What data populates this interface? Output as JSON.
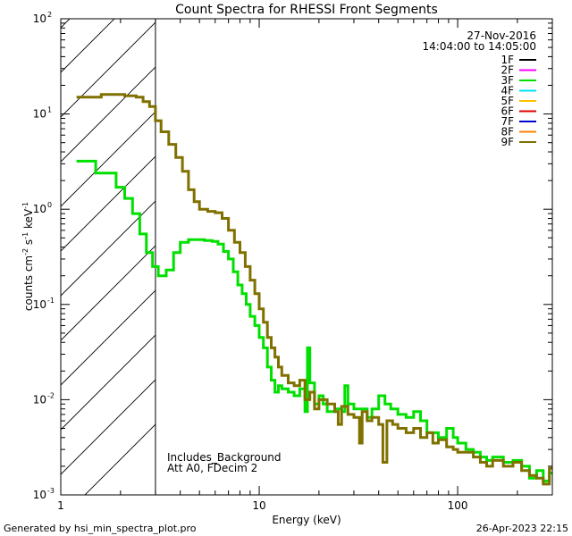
{
  "chart_data": {
    "type": "line",
    "title": "Count Spectra for RHESSI Front Segments",
    "xlabel": "Energy (keV)",
    "ylabel_parts": {
      "base": "counts cm",
      "exp1": "-2",
      "mid": " s",
      "exp2": "-1",
      "end": " keV",
      "exp3": "-1"
    },
    "xscale": "log",
    "yscale": "log",
    "xlim": [
      1,
      300
    ],
    "ylim": [
      0.001,
      100
    ],
    "x_ticks": [
      {
        "value": 1,
        "label": "1"
      },
      {
        "value": 10,
        "label": "10"
      },
      {
        "value": 100,
        "label": "100"
      }
    ],
    "y_ticks": [
      {
        "value": 0.001,
        "base": "10",
        "exp": "-3"
      },
      {
        "value": 0.01,
        "base": "10",
        "exp": "-2"
      },
      {
        "value": 0.1,
        "base": "10",
        "exp": "-1"
      },
      {
        "value": 1,
        "base": "10",
        "exp": "0"
      },
      {
        "value": 10,
        "base": "10",
        "exp": "1"
      },
      {
        "value": 100,
        "base": "10",
        "exp": "2"
      }
    ],
    "hatched_region_keV": [
      1,
      3
    ],
    "date": "27-Nov-2016",
    "time_range": "14:04:00 to 14:05:00",
    "annotations": [
      "Includes_Background",
      "Att A0, FDecim 2"
    ],
    "legend_position": "top-right",
    "legend": [
      {
        "label": "1F",
        "color": "#000000"
      },
      {
        "label": "2F",
        "color": "#ff00ff"
      },
      {
        "label": "3F",
        "color": "#00e000"
      },
      {
        "label": "4F",
        "color": "#00e0ff"
      },
      {
        "label": "5F",
        "color": "#ffc000"
      },
      {
        "label": "6F",
        "color": "#e00000"
      },
      {
        "label": "7F",
        "color": "#0000d0"
      },
      {
        "label": "8F",
        "color": "#ff8000"
      },
      {
        "label": "9F",
        "color": "#807000"
      }
    ],
    "series": [
      {
        "name": "3F",
        "color": "#00e000",
        "points": [
          [
            1.2,
            3.2
          ],
          [
            1.35,
            3.2
          ],
          [
            1.5,
            2.4
          ],
          [
            1.7,
            2.4
          ],
          [
            1.9,
            1.7
          ],
          [
            2.1,
            1.3
          ],
          [
            2.3,
            0.9
          ],
          [
            2.5,
            0.55
          ],
          [
            2.7,
            0.35
          ],
          [
            2.9,
            0.25
          ],
          [
            3.1,
            0.2
          ],
          [
            3.4,
            0.23
          ],
          [
            3.7,
            0.35
          ],
          [
            4.0,
            0.45
          ],
          [
            4.4,
            0.48
          ],
          [
            4.8,
            0.48
          ],
          [
            5.3,
            0.47
          ],
          [
            5.8,
            0.46
          ],
          [
            6.2,
            0.43
          ],
          [
            6.6,
            0.36
          ],
          [
            7.0,
            0.3
          ],
          [
            7.4,
            0.22
          ],
          [
            7.8,
            0.16
          ],
          [
            8.2,
            0.13
          ],
          [
            8.6,
            0.1
          ],
          [
            9.0,
            0.075
          ],
          [
            9.5,
            0.06
          ],
          [
            10.0,
            0.045
          ],
          [
            10.5,
            0.035
          ],
          [
            11.0,
            0.022
          ],
          [
            11.5,
            0.016
          ],
          [
            12.0,
            0.012
          ],
          [
            12.5,
            0.014
          ],
          [
            13.0,
            0.013
          ],
          [
            14.0,
            0.012
          ],
          [
            15.0,
            0.011
          ],
          [
            16.0,
            0.013
          ],
          [
            17.0,
            0.0075
          ],
          [
            17.5,
            0.035
          ],
          [
            18.0,
            0.015
          ],
          [
            19.0,
            0.009
          ],
          [
            20.0,
            0.011
          ],
          [
            21.0,
            0.009
          ],
          [
            22.0,
            0.0075
          ],
          [
            24.0,
            0.008
          ],
          [
            26.0,
            0.0075
          ],
          [
            27.0,
            0.014
          ],
          [
            28.0,
            0.009
          ],
          [
            30.0,
            0.008
          ],
          [
            33.0,
            0.008
          ],
          [
            35.0,
            0.0065
          ],
          [
            37.0,
            0.008
          ],
          [
            40.0,
            0.011
          ],
          [
            43.0,
            0.009
          ],
          [
            46.0,
            0.008
          ],
          [
            50.0,
            0.007
          ],
          [
            55.0,
            0.0065
          ],
          [
            60.0,
            0.0075
          ],
          [
            65.0,
            0.006
          ],
          [
            70.0,
            0.0045
          ],
          [
            75.0,
            0.0045
          ],
          [
            80.0,
            0.004
          ],
          [
            88.0,
            0.005
          ],
          [
            95.0,
            0.004
          ],
          [
            100.0,
            0.0035
          ],
          [
            110.0,
            0.003
          ],
          [
            120.0,
            0.0028
          ],
          [
            130.0,
            0.0025
          ],
          [
            140.0,
            0.0023
          ],
          [
            150.0,
            0.0025
          ],
          [
            170.0,
            0.0022
          ],
          [
            190.0,
            0.0023
          ],
          [
            210.0,
            0.002
          ],
          [
            230.0,
            0.0015
          ],
          [
            250.0,
            0.0018
          ],
          [
            270.0,
            0.0014
          ],
          [
            290.0,
            0.0017
          ]
        ]
      },
      {
        "name": "9F",
        "color": "#807000",
        "points": [
          [
            1.2,
            15
          ],
          [
            1.4,
            15
          ],
          [
            1.6,
            16
          ],
          [
            1.9,
            16
          ],
          [
            2.1,
            15.5
          ],
          [
            2.4,
            15
          ],
          [
            2.6,
            13.5
          ],
          [
            2.8,
            12
          ],
          [
            3.0,
            8.5
          ],
          [
            3.2,
            6.5
          ],
          [
            3.5,
            4.8
          ],
          [
            3.8,
            3.5
          ],
          [
            4.1,
            2.5
          ],
          [
            4.4,
            1.6
          ],
          [
            4.7,
            1.2
          ],
          [
            5.0,
            1.0
          ],
          [
            5.5,
            0.95
          ],
          [
            6.0,
            0.92
          ],
          [
            6.5,
            0.8
          ],
          [
            7.0,
            0.6
          ],
          [
            7.5,
            0.45
          ],
          [
            8.0,
            0.35
          ],
          [
            8.5,
            0.25
          ],
          [
            9.0,
            0.18
          ],
          [
            9.5,
            0.13
          ],
          [
            10.0,
            0.09
          ],
          [
            10.5,
            0.065
          ],
          [
            11.0,
            0.045
          ],
          [
            11.5,
            0.035
          ],
          [
            12.0,
            0.028
          ],
          [
            12.5,
            0.022
          ],
          [
            13.0,
            0.018
          ],
          [
            14.0,
            0.015
          ],
          [
            15.0,
            0.014
          ],
          [
            16.0,
            0.016
          ],
          [
            17.0,
            0.01
          ],
          [
            18.0,
            0.012
          ],
          [
            19.0,
            0.008
          ],
          [
            20.0,
            0.01
          ],
          [
            22.0,
            0.009
          ],
          [
            24.0,
            0.0075
          ],
          [
            25.0,
            0.0055
          ],
          [
            26.0,
            0.0085
          ],
          [
            28.0,
            0.007
          ],
          [
            30.0,
            0.0065
          ],
          [
            32.0,
            0.0035
          ],
          [
            33.0,
            0.0075
          ],
          [
            35.0,
            0.006
          ],
          [
            37.0,
            0.0065
          ],
          [
            40.0,
            0.0055
          ],
          [
            42.0,
            0.0022
          ],
          [
            44.0,
            0.006
          ],
          [
            47.0,
            0.0055
          ],
          [
            50.0,
            0.005
          ],
          [
            55.0,
            0.0045
          ],
          [
            60.0,
            0.005
          ],
          [
            65.0,
            0.004
          ],
          [
            70.0,
            0.0045
          ],
          [
            75.0,
            0.0035
          ],
          [
            80.0,
            0.0038
          ],
          [
            88.0,
            0.0032
          ],
          [
            95.0,
            0.003
          ],
          [
            100.0,
            0.0028
          ],
          [
            110.0,
            0.0028
          ],
          [
            120.0,
            0.0025
          ],
          [
            130.0,
            0.0022
          ],
          [
            140.0,
            0.002
          ],
          [
            150.0,
            0.0023
          ],
          [
            170.0,
            0.002
          ],
          [
            190.0,
            0.0022
          ],
          [
            210.0,
            0.0018
          ],
          [
            230.0,
            0.0016
          ],
          [
            250.0,
            0.0015
          ],
          [
            270.0,
            0.0013
          ],
          [
            290.0,
            0.0019
          ]
        ]
      }
    ]
  },
  "footer": {
    "left": "Generated by hsi_min_spectra_plot.pro",
    "right": "26-Apr-2023 22:15"
  }
}
